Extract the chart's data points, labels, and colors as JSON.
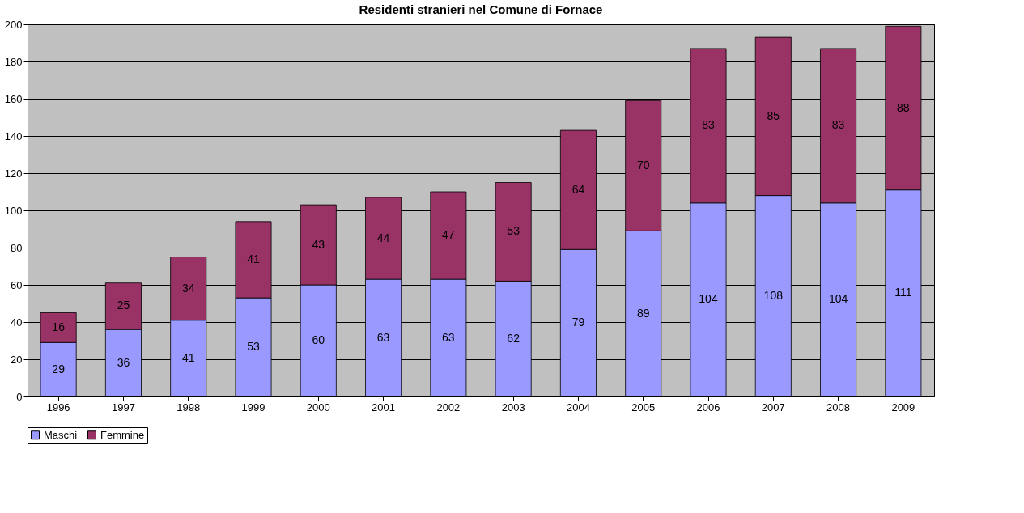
{
  "chart_data": {
    "type": "bar",
    "title": "Residenti stranieri nel Comune di Fornace",
    "stacked": true,
    "data_labels": true,
    "grid": "y",
    "legend": "bottom",
    "categories": [
      "1996",
      "1997",
      "1998",
      "1999",
      "2000",
      "2001",
      "2002",
      "2003",
      "2004",
      "2005",
      "2006",
      "2007",
      "2008",
      "2009"
    ],
    "ylim": [
      0,
      200
    ],
    "yticks": [
      0,
      20,
      40,
      60,
      80,
      100,
      120,
      140,
      160,
      180,
      200
    ],
    "series": [
      {
        "name": "Maschi",
        "color": "#9999ff",
        "values": [
          29,
          36,
          41,
          53,
          60,
          63,
          63,
          62,
          79,
          89,
          104,
          108,
          104,
          111
        ]
      },
      {
        "name": "Femmine",
        "color": "#993366",
        "values": [
          16,
          25,
          34,
          41,
          43,
          44,
          47,
          53,
          64,
          70,
          83,
          85,
          83,
          88
        ]
      }
    ]
  }
}
